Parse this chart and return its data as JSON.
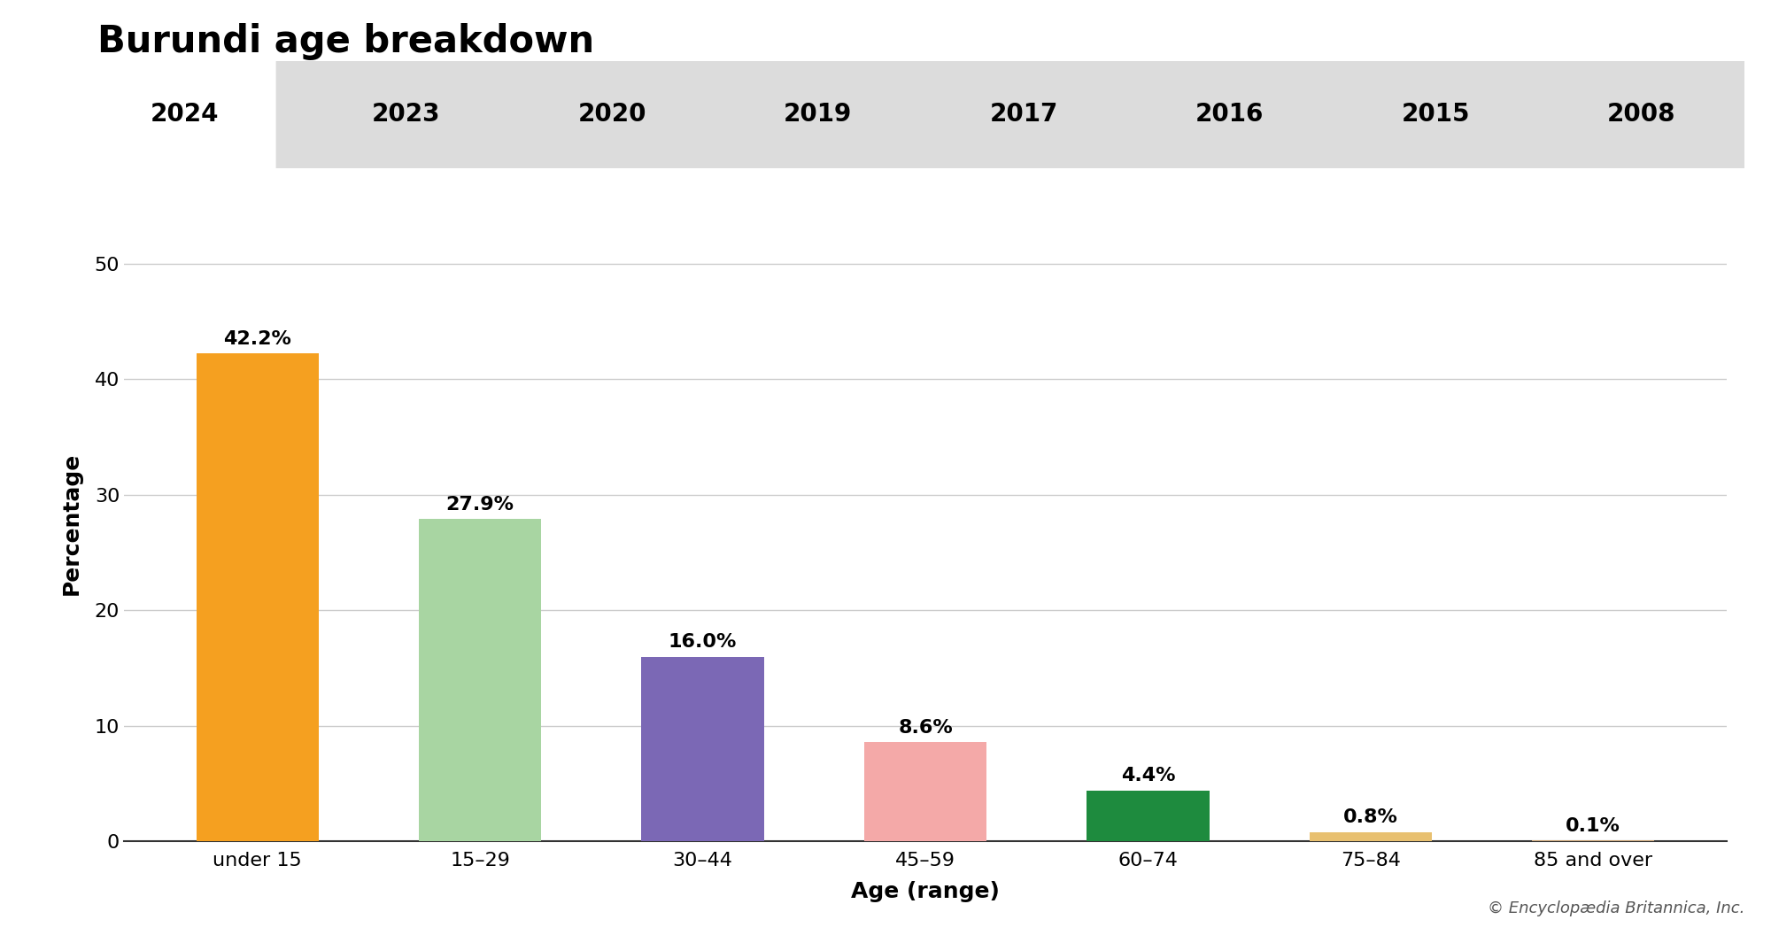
{
  "title": "Burundi age breakdown",
  "categories": [
    "under 15",
    "15–29",
    "30–44",
    "45–59",
    "60–74",
    "75–84",
    "85 and over"
  ],
  "values": [
    42.2,
    27.9,
    16.0,
    8.6,
    4.4,
    0.8,
    0.1
  ],
  "bar_colors": [
    "#F5A020",
    "#A8D5A2",
    "#7B68B5",
    "#F4A9A8",
    "#1E8B3E",
    "#E8C070",
    "#C8A070"
  ],
  "labels": [
    "42.2%",
    "27.9%",
    "16.0%",
    "8.6%",
    "4.4%",
    "0.8%",
    "0.1%"
  ],
  "xlabel": "Age (range)",
  "ylabel": "Percentage",
  "ylim": [
    0,
    55
  ],
  "yticks": [
    0,
    10,
    20,
    30,
    40,
    50
  ],
  "year_tabs": [
    "2024",
    "2023",
    "2020",
    "2019",
    "2017",
    "2016",
    "2015",
    "2008"
  ],
  "active_tab": "2024",
  "tab_bg_active": "#FFFFFF",
  "tab_bg_inactive": "#DCDCDC",
  "copyright": "© Encyclopædia Britannica, Inc.",
  "background_color": "#FFFFFF",
  "grid_color": "#CCCCCC",
  "title_fontsize": 30,
  "axis_label_fontsize": 18,
  "tick_fontsize": 16,
  "bar_label_fontsize": 16,
  "tab_fontsize": 20,
  "copyright_fontsize": 13
}
